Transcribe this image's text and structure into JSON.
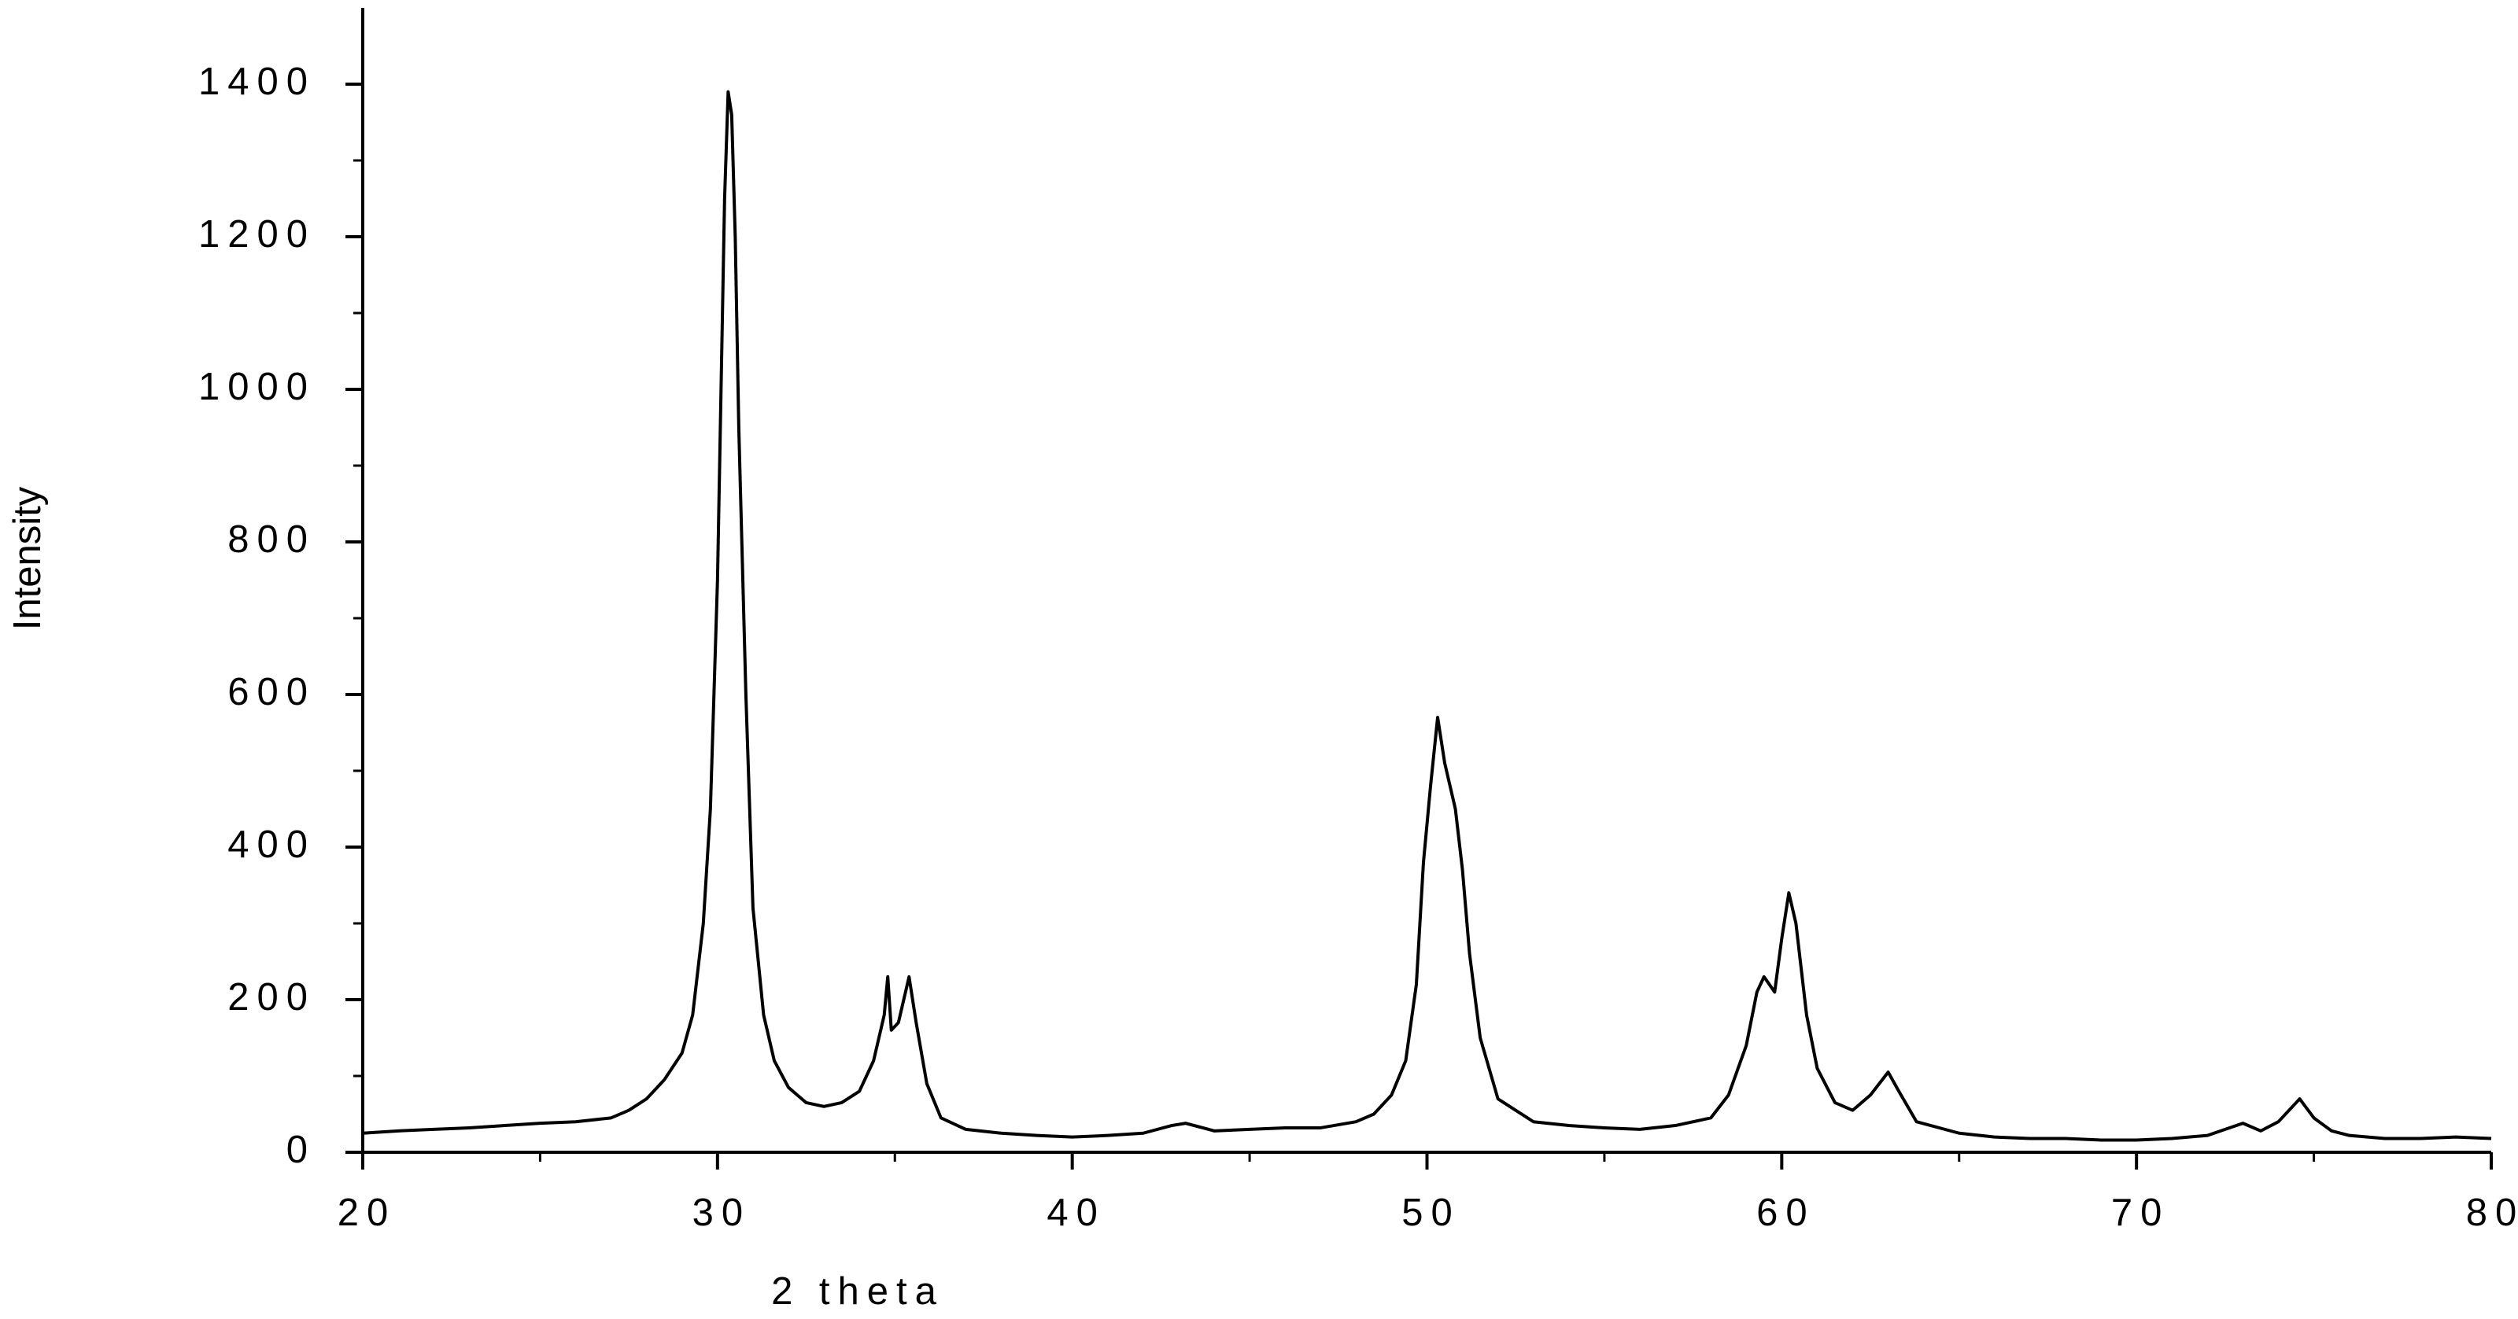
{
  "chart_data": {
    "type": "line",
    "x_label": "2 theta",
    "y_label": "Intensity",
    "xlim": [
      20,
      80
    ],
    "xticks": [
      20,
      30,
      40,
      50,
      60,
      70,
      80
    ],
    "ylim": [
      0,
      1500
    ],
    "yticks": [
      0,
      200,
      400,
      600,
      800,
      1000,
      1200,
      1400
    ],
    "series": [
      {
        "color": "#000000",
        "x": [
          20,
          21,
          22,
          23,
          24,
          25,
          26,
          27,
          27.5,
          28,
          28.5,
          29,
          29.3,
          29.6,
          29.8,
          30,
          30.1,
          30.2,
          30.3,
          30.4,
          30.5,
          30.6,
          30.8,
          31,
          31.3,
          31.6,
          32,
          32.5,
          33,
          33.5,
          34,
          34.4,
          34.7,
          34.8,
          34.9,
          35.1,
          35.4,
          35.6,
          35.9,
          36.3,
          37,
          38,
          39,
          40,
          41,
          42,
          42.8,
          43.2,
          44,
          45,
          46,
          47,
          48,
          48.5,
          49,
          49.4,
          49.7,
          49.9,
          50.1,
          50.3,
          50.5,
          50.8,
          51,
          51.2,
          51.5,
          52,
          53,
          54,
          55,
          56,
          57,
          58,
          58.5,
          59,
          59.3,
          59.5,
          59.8,
          60,
          60.2,
          60.4,
          60.7,
          61,
          61.5,
          62,
          62.5,
          63,
          63.3,
          63.8,
          65,
          66,
          67,
          68,
          69,
          70,
          71,
          72,
          73,
          73.5,
          74,
          74.6,
          75,
          75.5,
          76,
          77,
          78,
          79,
          80
        ],
        "values": [
          25,
          28,
          30,
          32,
          35,
          38,
          40,
          45,
          55,
          70,
          95,
          130,
          180,
          300,
          450,
          750,
          1000,
          1250,
          1390,
          1360,
          1200,
          950,
          600,
          320,
          180,
          120,
          85,
          65,
          60,
          65,
          80,
          120,
          180,
          230,
          160,
          170,
          230,
          170,
          90,
          45,
          30,
          25,
          22,
          20,
          22,
          25,
          35,
          38,
          28,
          30,
          32,
          32,
          40,
          50,
          75,
          120,
          220,
          380,
          480,
          570,
          510,
          450,
          370,
          260,
          150,
          70,
          40,
          35,
          32,
          30,
          35,
          45,
          75,
          140,
          210,
          230,
          210,
          280,
          340,
          300,
          180,
          110,
          65,
          55,
          75,
          105,
          80,
          40,
          25,
          20,
          18,
          18,
          16,
          16,
          18,
          22,
          38,
          28,
          40,
          70,
          45,
          28,
          22,
          18,
          18,
          20,
          18
        ]
      }
    ]
  }
}
